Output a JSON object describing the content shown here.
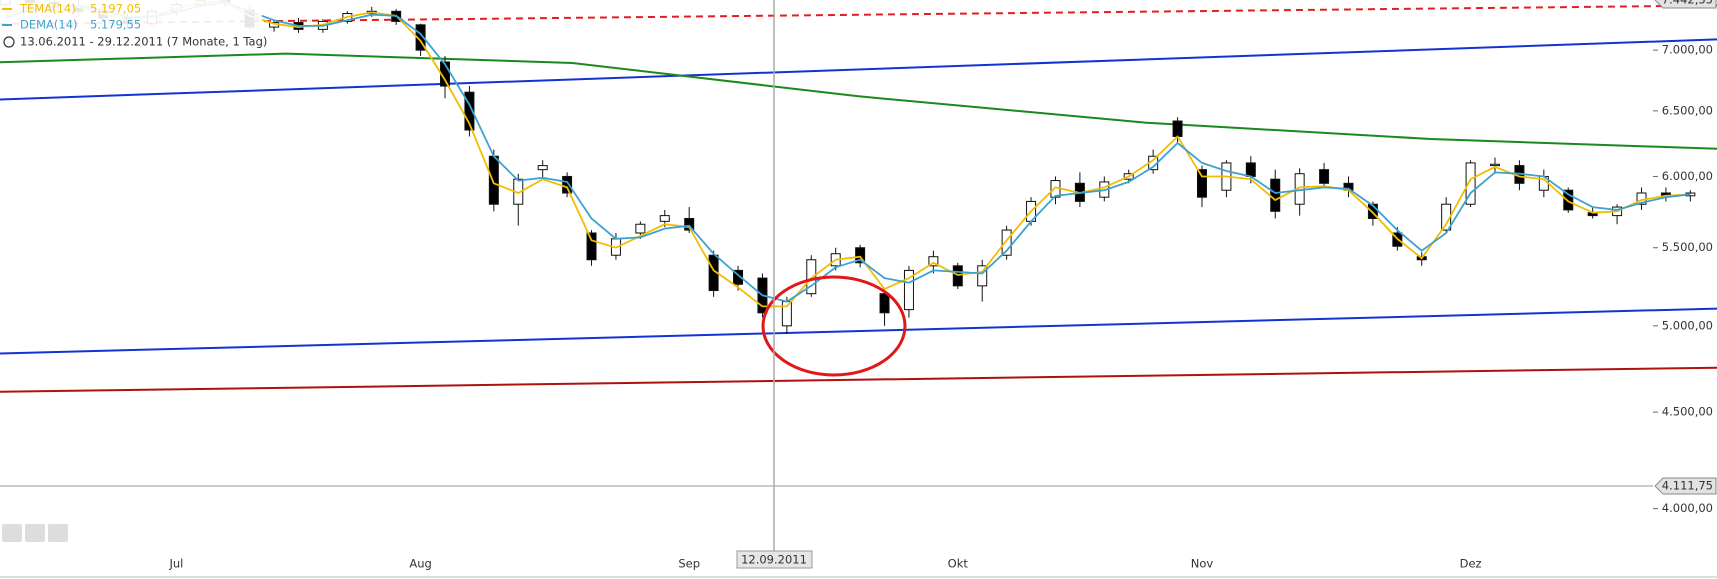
{
  "chart_data": {
    "type": "candlestick",
    "subtitle": "13.06.2011 - 29.12.2011 (7 Monate, 1 Tag)",
    "log_scale": true,
    "grid": false,
    "ylim": [
      3817,
      7442
    ],
    "yticks": [
      {
        "value": 7000,
        "label": "7.000,00"
      },
      {
        "value": 6500,
        "label": "6.500,00"
      },
      {
        "value": 6000,
        "label": "6.000,00"
      },
      {
        "value": 5500,
        "label": "5.500,00"
      },
      {
        "value": 5000,
        "label": "5.000,00"
      },
      {
        "value": 4500,
        "label": "4.500,00"
      },
      {
        "value": 4000,
        "label": "4.000,00"
      }
    ],
    "price_markers": [
      {
        "value": 7442.35,
        "label": "7.442,35"
      },
      {
        "value": 4111.75,
        "label": "4.111,75"
      }
    ],
    "crosshair_label": "12.09.2011",
    "categories": [
      null,
      null,
      null,
      null,
      null,
      null,
      null,
      "Jul",
      null,
      null,
      null,
      null,
      null,
      null,
      null,
      null,
      null,
      "Aug",
      null,
      null,
      null,
      null,
      null,
      null,
      null,
      null,
      null,
      null,
      "Sep",
      null,
      null,
      null,
      null,
      null,
      null,
      null,
      null,
      null,
      null,
      "Okt",
      null,
      null,
      null,
      null,
      null,
      null,
      null,
      null,
      null,
      "Nov",
      null,
      null,
      null,
      null,
      null,
      null,
      null,
      null,
      null,
      null,
      "Dez",
      null,
      null,
      null,
      null,
      null,
      null,
      null,
      null,
      null
    ],
    "candles": {
      "open": [
        7400,
        7450,
        7420,
        7380,
        7340,
        7280,
        7230,
        7340,
        7400,
        7440,
        7350,
        7200,
        7240,
        7180,
        7250,
        7320,
        7340,
        7220,
        6900,
        6650,
        6150,
        5800,
        6050,
        6000,
        5600,
        5450,
        5600,
        5680,
        5700,
        5450,
        5350,
        5300,
        5000,
        5200,
        5380,
        5500,
        5200,
        5100,
        5380,
        5380,
        5250,
        5450,
        5680,
        5850,
        5950,
        5850,
        5980,
        6050,
        6420,
        6050,
        5900,
        6100,
        5980,
        5800,
        6050,
        5950,
        5800,
        5600,
        5440,
        5620,
        5800,
        6080,
        6080,
        5900,
        5900,
        5740,
        5720,
        5800,
        5880,
        5860
      ],
      "high": [
        7480,
        7520,
        7500,
        7460,
        7420,
        7320,
        7360,
        7420,
        7480,
        7480,
        7400,
        7260,
        7280,
        7270,
        7340,
        7380,
        7360,
        7230,
        6950,
        6700,
        6200,
        6020,
        6120,
        6030,
        5620,
        5600,
        5680,
        5760,
        5780,
        5480,
        5380,
        5330,
        5180,
        5450,
        5500,
        5520,
        5230,
        5380,
        5480,
        5400,
        5420,
        5650,
        5850,
        6000,
        6030,
        6000,
        6050,
        6200,
        6450,
        6080,
        6120,
        6150,
        6050,
        6060,
        6100,
        6000,
        5820,
        5640,
        5470,
        5850,
        6120,
        6140,
        6120,
        6050,
        5920,
        5780,
        5800,
        5920,
        5920,
        5900
      ],
      "low": [
        7360,
        7380,
        7350,
        7300,
        7250,
        7200,
        7210,
        7300,
        7380,
        7380,
        7180,
        7160,
        7150,
        7150,
        7230,
        7290,
        7220,
        6950,
        6600,
        6300,
        5750,
        5650,
        5980,
        5850,
        5380,
        5420,
        5560,
        5640,
        5600,
        5180,
        5220,
        5050,
        4950,
        5180,
        5350,
        5370,
        5000,
        5050,
        5330,
        5230,
        5150,
        5420,
        5650,
        5800,
        5780,
        5820,
        5950,
        6020,
        6250,
        5780,
        5850,
        5950,
        5700,
        5720,
        5920,
        5850,
        5650,
        5480,
        5380,
        5600,
        5780,
        6020,
        5900,
        5850,
        5740,
        5700,
        5660,
        5760,
        5820,
        5820
      ],
      "close": [
        7450,
        7420,
        7380,
        7340,
        7280,
        7230,
        7340,
        7400,
        7440,
        7420,
        7200,
        7240,
        7180,
        7250,
        7320,
        7340,
        7250,
        7000,
        6700,
        6350,
        5800,
        5980,
        6080,
        5880,
        5420,
        5560,
        5660,
        5720,
        5620,
        5220,
        5260,
        5080,
        5150,
        5420,
        5460,
        5400,
        5080,
        5350,
        5440,
        5250,
        5380,
        5620,
        5820,
        5970,
        5820,
        5960,
        6020,
        6150,
        6300,
        5850,
        6100,
        6000,
        5750,
        6020,
        5950,
        5900,
        5700,
        5510,
        5420,
        5800,
        6100,
        6090,
        5950,
        6000,
        5760,
        5720,
        5780,
        5880,
        5860,
        5880
      ]
    },
    "series": [
      {
        "name": "TEMA(14)",
        "last_label": "5.197,05",
        "color": "#f2bd00",
        "values": [
          7300,
          7380,
          7400,
          7380,
          7320,
          7260,
          7300,
          7360,
          7420,
          7430,
          7300,
          7230,
          7200,
          7220,
          7290,
          7330,
          7300,
          7080,
          6750,
          6400,
          5950,
          5880,
          5980,
          5920,
          5550,
          5500,
          5580,
          5660,
          5640,
          5350,
          5240,
          5120,
          5120,
          5300,
          5420,
          5440,
          5230,
          5300,
          5400,
          5320,
          5340,
          5550,
          5750,
          5920,
          5880,
          5920,
          6000,
          6120,
          6300,
          6000,
          6000,
          5980,
          5830,
          5920,
          5930,
          5900,
          5740,
          5560,
          5430,
          5660,
          5980,
          6070,
          6000,
          5980,
          5820,
          5740,
          5750,
          5830,
          5860,
          5870
        ]
      },
      {
        "name": "DEMA(14)",
        "last_label": "5.179,55",
        "color": "#3ea2d0",
        "values": [
          7280,
          7350,
          7390,
          7390,
          7350,
          7290,
          7290,
          7330,
          7390,
          7420,
          7340,
          7260,
          7210,
          7210,
          7260,
          7310,
          7300,
          7140,
          6880,
          6550,
          6150,
          5970,
          5990,
          5960,
          5700,
          5560,
          5570,
          5630,
          5650,
          5460,
          5320,
          5190,
          5150,
          5250,
          5370,
          5420,
          5300,
          5270,
          5350,
          5340,
          5330,
          5480,
          5680,
          5860,
          5880,
          5900,
          5960,
          6070,
          6250,
          6100,
          6040,
          6000,
          5880,
          5900,
          5920,
          5910,
          5790,
          5620,
          5480,
          5600,
          5880,
          6030,
          6020,
          6000,
          5870,
          5780,
          5760,
          5810,
          5850,
          5870
        ]
      }
    ],
    "overlays": [
      {
        "color": "#1432d2",
        "values": [
          6591,
          7093
        ]
      },
      {
        "color": "#1432d2",
        "values": [
          4834,
          5106
        ]
      },
      {
        "color": "#b01010",
        "values": [
          4613,
          4751
        ]
      },
      {
        "color": "#e02020",
        "dashed": true,
        "values": [
          7227,
          7392
        ]
      },
      {
        "color": "#1a8a1a",
        "values": [
          6897,
          6971,
          6891,
          6617,
          6408,
          6281,
          6206
        ]
      }
    ]
  }
}
